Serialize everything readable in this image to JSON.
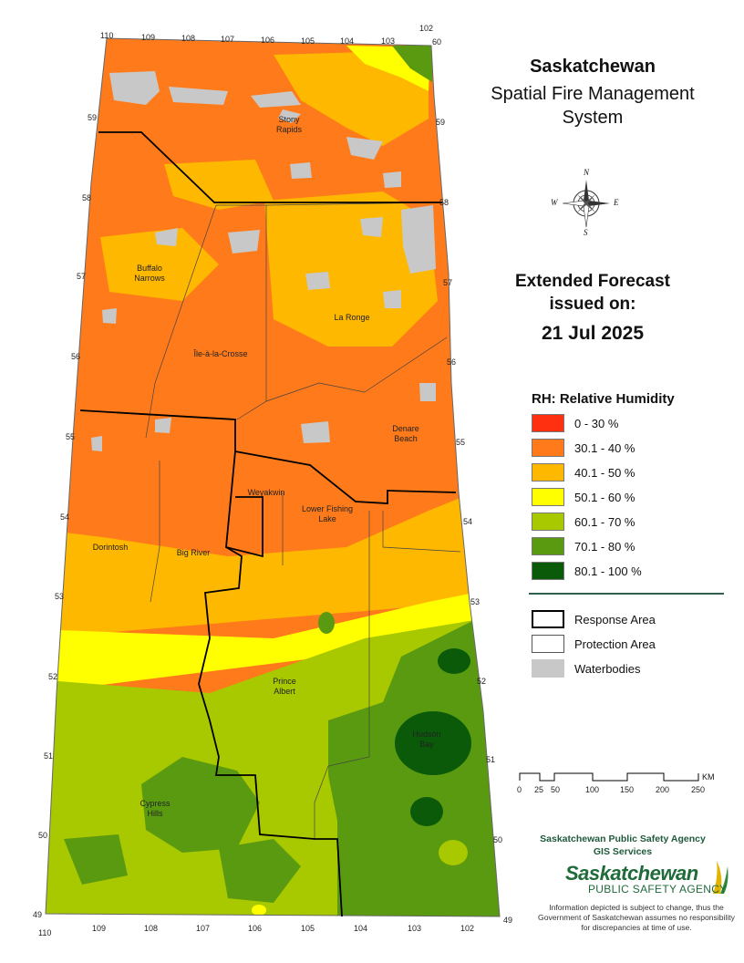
{
  "title": {
    "line1": "Saskatchewan",
    "line2": "Spatial Fire Management",
    "line3": "System"
  },
  "forecast": {
    "line1": "Extended Forecast",
    "line2": "issued on:",
    "date": "21 Jul 2025"
  },
  "legend": {
    "title": "RH: Relative Humidity",
    "classes": [
      {
        "label": "0 - 30 %",
        "color": "#ff3010"
      },
      {
        "label": "30.1 - 40 %",
        "color": "#ff7a1a"
      },
      {
        "label": "40.1 - 50 %",
        "color": "#ffb800"
      },
      {
        "label": "50.1 - 60 %",
        "color": "#ffff00"
      },
      {
        "label": "60.1 - 70 %",
        "color": "#a8c800"
      },
      {
        "label": "70.1 - 80 %",
        "color": "#5a9a10"
      },
      {
        "label": "80.1 - 100 %",
        "color": "#0a5a0a"
      }
    ],
    "symbols": [
      {
        "label": "Response Area",
        "style": "thick-black-outline"
      },
      {
        "label": "Protection Area",
        "style": "thin-gray-outline"
      },
      {
        "label": "Waterbodies",
        "color": "#c8c8c8"
      }
    ]
  },
  "scale_bar": {
    "ticks": [
      "0",
      "25",
      "50",
      "100",
      "150",
      "200",
      "250"
    ],
    "unit": "KM"
  },
  "compass": {
    "n": "N",
    "s": "S",
    "e": "E",
    "w": "W"
  },
  "graticule": {
    "longitudes": [
      "110",
      "109",
      "108",
      "107",
      "106",
      "105",
      "104",
      "103",
      "102"
    ],
    "latitudes": [
      "60",
      "59",
      "58",
      "57",
      "56",
      "55",
      "54",
      "53",
      "52",
      "51",
      "50",
      "49"
    ]
  },
  "places": [
    {
      "name": "Stony Rapids"
    },
    {
      "name": "Buffalo Narrows"
    },
    {
      "name": "La Ronge"
    },
    {
      "name": "Île-à-la-Crosse"
    },
    {
      "name": "Denare Beach"
    },
    {
      "name": "Weyakwin"
    },
    {
      "name": "Lower Fishing Lake"
    },
    {
      "name": "Dorintosh"
    },
    {
      "name": "Big River"
    },
    {
      "name": "Prince Albert"
    },
    {
      "name": "Hudson Bay"
    },
    {
      "name": "Cypress Hills"
    }
  ],
  "credits": {
    "agency_line1": "Saskatchewan Public Safety Agency",
    "agency_line2": "GIS  Services",
    "brand_name": "Saskatchewan",
    "brand_sub": "PUBLIC SAFETY AGENCY",
    "disclaimer": "Information depicted is subject to change, thus the Government of Saskatchewan assumes no responsibility for discrepancies at time of use."
  }
}
